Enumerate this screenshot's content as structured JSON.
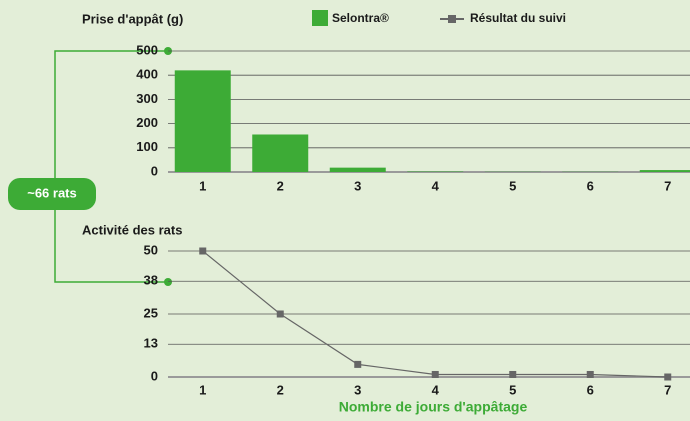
{
  "chart_data": [
    {
      "type": "bar",
      "title": "Prise d'appât (g)",
      "annotation": "~66 rats",
      "categories": [
        "1",
        "2",
        "3",
        "4",
        "5",
        "6",
        "7"
      ],
      "series": [
        {
          "name": "Selontra®",
          "color": "#3dab36",
          "values": [
            420,
            155,
            18,
            2,
            1,
            1,
            8
          ]
        }
      ],
      "ylim": [
        0,
        500
      ],
      "yticks": [
        0,
        100,
        200,
        300,
        400,
        500
      ],
      "grid": true
    },
    {
      "type": "line",
      "title": "Activité des rats",
      "x_label": "Nombre de jours d'appâtage",
      "categories": [
        "1",
        "2",
        "3",
        "4",
        "5",
        "6",
        "7"
      ],
      "series": [
        {
          "name": "Résultat du suivi",
          "color": "#666666",
          "values": [
            50,
            25,
            5,
            1,
            1,
            1,
            0
          ]
        }
      ],
      "ylim": [
        0,
        50
      ],
      "yticks": [
        0,
        13,
        25,
        38,
        50
      ],
      "grid": true
    }
  ]
}
